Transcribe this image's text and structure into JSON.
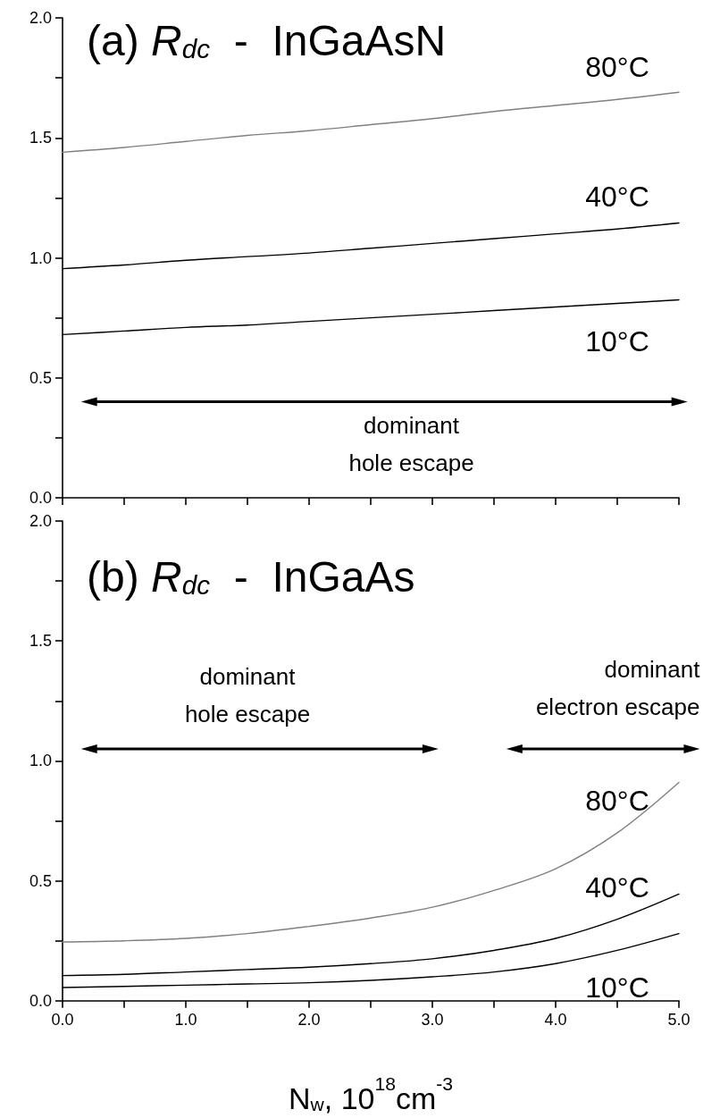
{
  "chart_data": [
    {
      "type": "line",
      "title": "(a) R$_{dc}$  -  InGaAsN",
      "x": [
        0,
        0.5,
        1,
        1.5,
        2,
        2.5,
        3,
        3.5,
        4,
        4.5,
        5
      ],
      "series": [
        {
          "name": "80°C",
          "color": "#808080",
          "values": [
            1.44,
            1.46,
            1.485,
            1.51,
            1.53,
            1.555,
            1.58,
            1.61,
            1.635,
            1.66,
            1.69
          ]
        },
        {
          "name": "40°C",
          "color": "#000000",
          "values": [
            0.955,
            0.97,
            0.99,
            1.005,
            1.02,
            1.04,
            1.06,
            1.08,
            1.1,
            1.12,
            1.145
          ]
        },
        {
          "name": "10°C",
          "color": "#000000",
          "values": [
            0.68,
            0.695,
            0.71,
            0.72,
            0.735,
            0.75,
            0.765,
            0.78,
            0.795,
            0.81,
            0.825
          ]
        }
      ],
      "annotations": [
        "dominant\nhole escape"
      ],
      "xlim": [
        0,
        5
      ],
      "xticks": [
        {
          "value": 0,
          "label": null
        },
        {
          "value": 0.5,
          "label": null
        },
        {
          "value": 1,
          "label": null
        },
        {
          "value": 1.5,
          "label": null
        },
        {
          "value": 2,
          "label": null
        },
        {
          "value": 2.5,
          "label": null
        },
        {
          "value": 3,
          "label": null
        },
        {
          "value": 3.5,
          "label": null
        },
        {
          "value": 4,
          "label": null
        },
        {
          "value": 4.5,
          "label": null
        },
        {
          "value": 5,
          "label": null
        }
      ],
      "ylim": [
        0,
        2
      ],
      "yticks": [
        {
          "value": 0,
          "label": "0.0"
        },
        {
          "value": 0.25,
          "label": null
        },
        {
          "value": 0.5,
          "label": "0.5"
        },
        {
          "value": 0.75,
          "label": null
        },
        {
          "value": 1,
          "label": "1.0"
        },
        {
          "value": 1.25,
          "label": null
        },
        {
          "value": 1.5,
          "label": "1.5"
        },
        {
          "value": 1.75,
          "label": null
        },
        {
          "value": 2,
          "label": "2.0"
        }
      ],
      "tick_labels": "y",
      "grid": false,
      "legend": false,
      "marker": "none",
      "line_style": "solid"
    },
    {
      "type": "line",
      "title": "(b) R$_{dc}$  -  InGaAs",
      "xlabel": "N$_{w}$, 10$^{18}$cm$^{-3}$",
      "x": [
        0,
        0.5,
        1,
        1.5,
        2,
        2.5,
        3,
        3.5,
        4,
        4.5,
        5
      ],
      "series": [
        {
          "name": "80°C",
          "color": "#808080",
          "values": [
            0.245,
            0.25,
            0.26,
            0.28,
            0.31,
            0.345,
            0.39,
            0.46,
            0.55,
            0.7,
            0.91
          ]
        },
        {
          "name": "40°C",
          "color": "#000000",
          "values": [
            0.105,
            0.11,
            0.12,
            0.13,
            0.14,
            0.155,
            0.175,
            0.21,
            0.26,
            0.34,
            0.445
          ]
        },
        {
          "name": "10°C",
          "color": "#000000",
          "values": [
            0.055,
            0.06,
            0.065,
            0.07,
            0.075,
            0.085,
            0.1,
            0.12,
            0.155,
            0.21,
            0.28
          ]
        }
      ],
      "annotations": [
        "dominant\nhole escape",
        "dominant\nelectron escape"
      ],
      "xlim": [
        0,
        5
      ],
      "xticks": [
        {
          "value": 0,
          "label": "0.0"
        },
        {
          "value": 0.5,
          "label": null
        },
        {
          "value": 1,
          "label": "1.0"
        },
        {
          "value": 1.5,
          "label": null
        },
        {
          "value": 2,
          "label": "2.0"
        },
        {
          "value": 2.5,
          "label": null
        },
        {
          "value": 3,
          "label": "3.0"
        },
        {
          "value": 3.5,
          "label": null
        },
        {
          "value": 4,
          "label": "4.0"
        },
        {
          "value": 4.5,
          "label": null
        },
        {
          "value": 5,
          "label": "5.0"
        }
      ],
      "ylim": [
        0,
        2
      ],
      "yticks": [
        {
          "value": 0,
          "label": "0.0"
        },
        {
          "value": 0.25,
          "label": null
        },
        {
          "value": 0.5,
          "label": "0.5"
        },
        {
          "value": 0.75,
          "label": null
        },
        {
          "value": 1,
          "label": "1.0"
        },
        {
          "value": 1.25,
          "label": null
        },
        {
          "value": 1.5,
          "label": "1.5"
        },
        {
          "value": 1.75,
          "label": null
        },
        {
          "value": 2,
          "label": "2.0"
        }
      ],
      "grid": false,
      "legend": false,
      "marker": "none",
      "line_style": "solid"
    }
  ]
}
